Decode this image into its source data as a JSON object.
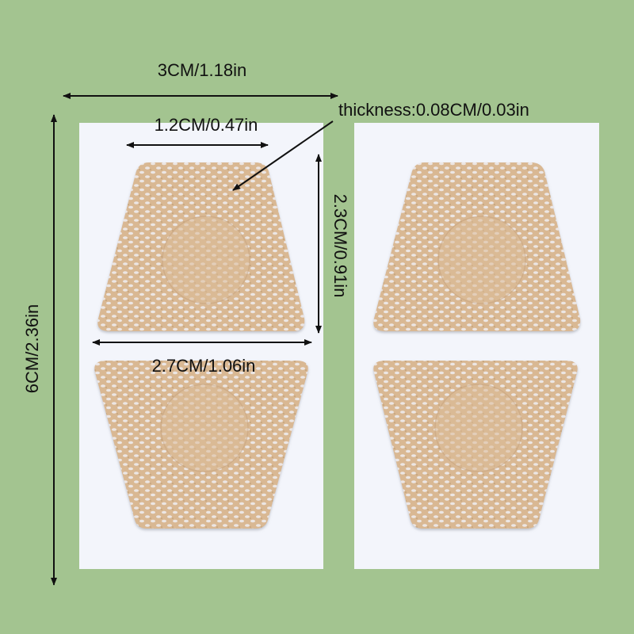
{
  "colors": {
    "background": "#a3c490",
    "sheet": "#f3f5fb",
    "patch": "#dcbc98",
    "patch_dots": "#eeeaea"
  },
  "dimensions": {
    "sheet_width": "3CM/1.18in",
    "sheet_height": "6CM/2.36in",
    "patch_top_width": "1.2CM/0.47in",
    "patch_height": "2.3CM/0.91in",
    "patch_bottom_width": "2.7CM/1.06in",
    "thickness": "thickness:0.08CM/0.03in"
  }
}
